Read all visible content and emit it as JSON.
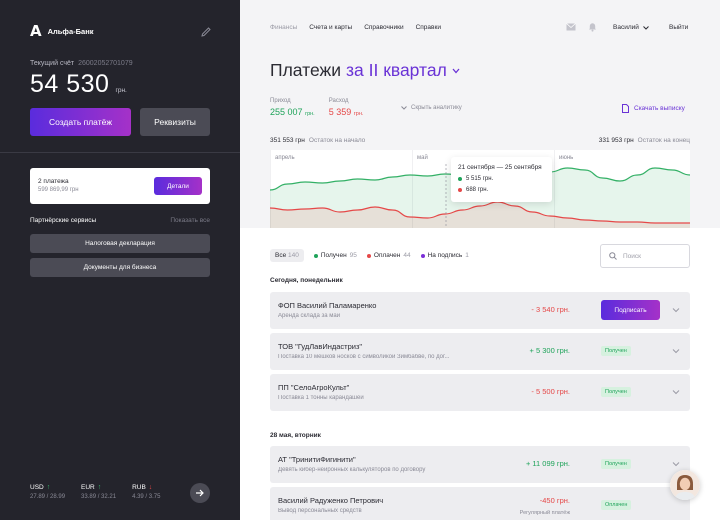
{
  "sidebar": {
    "bank_logo": "А",
    "bank_name": "Альфа-Банк",
    "account_label": "Текущий счёт",
    "account_number": "26002052701079",
    "balance": "54 530",
    "balance_currency": "грн.",
    "create_payment": "Создать платёж",
    "requisites": "Реквизиты",
    "payments_card": {
      "title": "2 платежа",
      "amount": "599 869,99 грн",
      "details_button": "Детали"
    },
    "partners_title": "Партнёрские сервисы",
    "show_all": "Показать все",
    "services": [
      "Налоговая декларация",
      "Документы для бизнеса"
    ],
    "rates": [
      {
        "currency": "USD",
        "direction": "up",
        "values": "27.89 / 28.99"
      },
      {
        "currency": "EUR",
        "direction": "up",
        "values": "33.89 / 32.21"
      },
      {
        "currency": "RUB",
        "direction": "down",
        "values": "4.39 / 3.75"
      }
    ]
  },
  "nav": {
    "items": [
      "Финансы",
      "Счета и карты",
      "Справочники",
      "Справки"
    ],
    "user": "Василий",
    "logout": "Выйти"
  },
  "header": {
    "title": "Платежи",
    "period": "за II квартал",
    "income_label": "Приход",
    "income_value": "255 007",
    "income_cur": "грн.",
    "expense_label": "Расход",
    "expense_value": "5 359",
    "expense_cur": "грн.",
    "hide_analytics": "Скрыть аналитику",
    "download": "Скачать выписку"
  },
  "chart_head": {
    "start_amount": "351 553 грн",
    "start_label": "Остаток на начало",
    "end_amount": "331 953 грн",
    "end_label": "Остаток на конец"
  },
  "chart_data": {
    "type": "area",
    "x_tick_labels": [
      "апрель",
      "май",
      "июнь"
    ],
    "series": [
      {
        "color": "#33b066",
        "values": [
          40,
          46,
          48,
          47,
          49,
          51,
          50,
          53,
          55,
          54,
          56,
          55,
          53,
          50,
          48,
          50,
          58,
          62,
          60,
          52,
          49,
          55,
          62,
          60,
          55
        ]
      },
      {
        "color": "#e54848",
        "values": [
          22,
          20,
          21,
          22,
          18,
          20,
          23,
          20,
          13,
          12,
          16,
          20,
          24,
          28,
          24,
          18,
          14,
          12,
          10,
          9,
          8,
          8,
          7,
          7,
          7
        ]
      }
    ],
    "tooltip": {
      "range": "21 сентября — 25 сентября",
      "income": "5 515 грн.",
      "expense": "688 грн."
    }
  },
  "colors": {
    "accent": "#6a33d6",
    "green": "#1fa35a",
    "red": "#e54848",
    "purple_dot": "#7b2fd8"
  },
  "filters": {
    "all_label": "Все",
    "all_count": "140",
    "received_label": "Получен",
    "received_count": "95",
    "paid_label": "Оплачен",
    "paid_count": "44",
    "tosign_label": "На подпись",
    "tosign_count": "1",
    "search_placeholder": "Поиск"
  },
  "transactions": {
    "today_label": "Сегодня, понедельник",
    "may_label": "28 мая, вторник",
    "rows": [
      {
        "title": "ФОП Василий Паламаренко",
        "sub": "Аренда склада за май",
        "amount": "- 3 540 грн.",
        "action": "Подписать"
      },
      {
        "title": "ТОВ \"ГудЛавИндастриз\"",
        "sub": "Поставка 10 мешков носков с символикой Зимбабве, по дог...",
        "amount": "+ 5 300 грн.",
        "status": "Получен"
      },
      {
        "title": "ПП \"СелоАгроКульт\"",
        "sub": "Поставка 1 тонны карандашей",
        "amount": "- 5 500 грн.",
        "status": "Получен"
      },
      {
        "title": "АТ \"ТринитиФигинити\"",
        "sub": "Девять кибер-нейронных калькуляторов по договору",
        "amount": "+ 11 099 грн.",
        "status": "Получен"
      },
      {
        "title": "Василий Радуженко Петрович",
        "sub": "Вывод персональных средств",
        "amount": "-450 грн.",
        "amount_sub": "Регулярный платёж",
        "status": "Оплачен"
      }
    ]
  }
}
